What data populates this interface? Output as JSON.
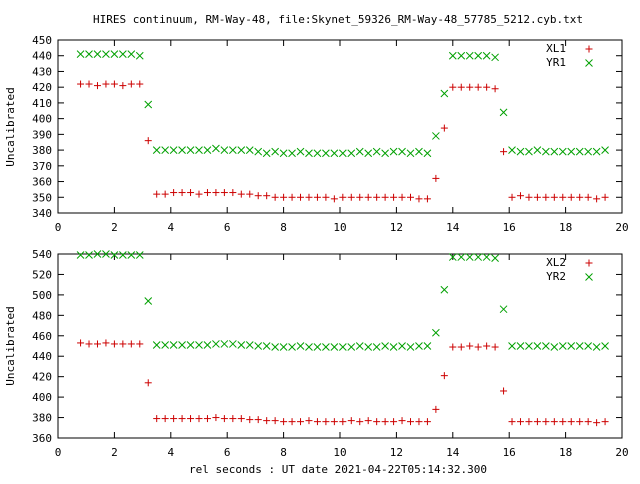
{
  "title": "HIRES continuum, RM-Way-48, file:Skynet_59326_RM-Way-48_57785_5212.cyb.txt",
  "xlabel": "rel seconds : UT date 2021-04-22T05:14:32.300",
  "colors": {
    "plus": "#cc0000",
    "cross": "#00a000",
    "axis": "#000000",
    "background": "#ffffff"
  },
  "chart_data": [
    {
      "type": "scatter",
      "ylabel": "Uncalibrated",
      "xlim": [
        0,
        20
      ],
      "ylim": [
        340,
        450
      ],
      "xticks": [
        0,
        2,
        4,
        6,
        8,
        10,
        12,
        14,
        16,
        18,
        20
      ],
      "yticks": [
        340,
        350,
        360,
        370,
        380,
        390,
        400,
        410,
        420,
        430,
        440,
        450
      ],
      "legend_position": "top-right",
      "series": [
        {
          "name": "XL1",
          "marker": "plus",
          "x": [
            0.8,
            1.1,
            1.4,
            1.7,
            2.0,
            2.3,
            2.6,
            2.9,
            3.2,
            3.5,
            3.8,
            4.1,
            4.4,
            4.7,
            5.0,
            5.3,
            5.6,
            5.9,
            6.2,
            6.5,
            6.8,
            7.1,
            7.4,
            7.7,
            8.0,
            8.3,
            8.6,
            8.9,
            9.2,
            9.5,
            9.8,
            10.1,
            10.4,
            10.7,
            11.0,
            11.3,
            11.6,
            11.9,
            12.2,
            12.5,
            12.8,
            13.1,
            13.4,
            13.7,
            14.0,
            14.3,
            14.6,
            14.9,
            15.2,
            15.5,
            15.8,
            16.1,
            16.4,
            16.7,
            17.0,
            17.3,
            17.6,
            17.9,
            18.2,
            18.5,
            18.8,
            19.1,
            19.4
          ],
          "y": [
            422,
            422,
            421,
            422,
            422,
            421,
            422,
            422,
            386,
            352,
            352,
            353,
            353,
            353,
            352,
            353,
            353,
            353,
            353,
            352,
            352,
            351,
            351,
            350,
            350,
            350,
            350,
            350,
            350,
            350,
            349,
            350,
            350,
            350,
            350,
            350,
            350,
            350,
            350,
            350,
            349,
            349,
            362,
            394,
            420,
            420,
            420,
            420,
            420,
            419,
            379,
            350,
            351,
            350,
            350,
            350,
            350,
            350,
            350,
            350,
            350,
            349,
            350
          ]
        },
        {
          "name": "YR1",
          "marker": "cross",
          "x": [
            0.8,
            1.1,
            1.4,
            1.7,
            2.0,
            2.3,
            2.6,
            2.9,
            3.2,
            3.5,
            3.8,
            4.1,
            4.4,
            4.7,
            5.0,
            5.3,
            5.6,
            5.9,
            6.2,
            6.5,
            6.8,
            7.1,
            7.4,
            7.7,
            8.0,
            8.3,
            8.6,
            8.9,
            9.2,
            9.5,
            9.8,
            10.1,
            10.4,
            10.7,
            11.0,
            11.3,
            11.6,
            11.9,
            12.2,
            12.5,
            12.8,
            13.1,
            13.4,
            13.7,
            14.0,
            14.3,
            14.6,
            14.9,
            15.2,
            15.5,
            15.8,
            16.1,
            16.4,
            16.7,
            17.0,
            17.3,
            17.6,
            17.9,
            18.2,
            18.5,
            18.8,
            19.1,
            19.4
          ],
          "y": [
            441,
            441,
            441,
            441,
            441,
            441,
            441,
            440,
            409,
            380,
            380,
            380,
            380,
            380,
            380,
            380,
            381,
            380,
            380,
            380,
            380,
            379,
            378,
            379,
            378,
            378,
            379,
            378,
            378,
            378,
            378,
            378,
            378,
            379,
            378,
            379,
            378,
            379,
            379,
            378,
            379,
            378,
            389,
            416,
            440,
            440,
            440,
            440,
            440,
            439,
            404,
            380,
            379,
            379,
            380,
            379,
            379,
            379,
            379,
            379,
            379,
            379,
            380
          ]
        }
      ]
    },
    {
      "type": "scatter",
      "ylabel": "Uncalibrated",
      "xlabel": "rel seconds : UT date 2021-04-22T05:14:32.300",
      "xlim": [
        0,
        20
      ],
      "ylim": [
        360,
        540
      ],
      "xticks": [
        0,
        2,
        4,
        6,
        8,
        10,
        12,
        14,
        16,
        18,
        20
      ],
      "yticks": [
        360,
        380,
        400,
        420,
        440,
        460,
        480,
        500,
        520,
        540
      ],
      "legend_position": "top-right",
      "series": [
        {
          "name": "XL2",
          "marker": "plus",
          "x": [
            0.8,
            1.1,
            1.4,
            1.7,
            2.0,
            2.3,
            2.6,
            2.9,
            3.2,
            3.5,
            3.8,
            4.1,
            4.4,
            4.7,
            5.0,
            5.3,
            5.6,
            5.9,
            6.2,
            6.5,
            6.8,
            7.1,
            7.4,
            7.7,
            8.0,
            8.3,
            8.6,
            8.9,
            9.2,
            9.5,
            9.8,
            10.1,
            10.4,
            10.7,
            11.0,
            11.3,
            11.6,
            11.9,
            12.2,
            12.5,
            12.8,
            13.1,
            13.4,
            13.7,
            14.0,
            14.3,
            14.6,
            14.9,
            15.2,
            15.5,
            15.8,
            16.1,
            16.4,
            16.7,
            17.0,
            17.3,
            17.6,
            17.9,
            18.2,
            18.5,
            18.8,
            19.1,
            19.4
          ],
          "y": [
            453,
            452,
            452,
            453,
            452,
            452,
            452,
            452,
            414,
            379,
            379,
            379,
            379,
            379,
            379,
            379,
            380,
            379,
            379,
            379,
            378,
            378,
            377,
            377,
            376,
            376,
            376,
            377,
            376,
            376,
            376,
            376,
            377,
            376,
            377,
            376,
            376,
            376,
            377,
            376,
            376,
            376,
            388,
            421,
            449,
            449,
            450,
            449,
            450,
            449,
            406,
            376,
            376,
            376,
            376,
            376,
            376,
            376,
            376,
            376,
            376,
            375,
            376
          ]
        },
        {
          "name": "YR2",
          "marker": "cross",
          "x": [
            0.8,
            1.1,
            1.4,
            1.7,
            2.0,
            2.3,
            2.6,
            2.9,
            3.2,
            3.5,
            3.8,
            4.1,
            4.4,
            4.7,
            5.0,
            5.3,
            5.6,
            5.9,
            6.2,
            6.5,
            6.8,
            7.1,
            7.4,
            7.7,
            8.0,
            8.3,
            8.6,
            8.9,
            9.2,
            9.5,
            9.8,
            10.1,
            10.4,
            10.7,
            11.0,
            11.3,
            11.6,
            11.9,
            12.2,
            12.5,
            12.8,
            13.1,
            13.4,
            13.7,
            14.0,
            14.3,
            14.6,
            14.9,
            15.2,
            15.5,
            15.8,
            16.1,
            16.4,
            16.7,
            17.0,
            17.3,
            17.6,
            17.9,
            18.2,
            18.5,
            18.8,
            19.1,
            19.4
          ],
          "y": [
            539,
            539,
            540,
            540,
            539,
            539,
            539,
            539,
            494,
            451,
            451,
            451,
            451,
            451,
            451,
            451,
            452,
            452,
            452,
            451,
            451,
            450,
            450,
            449,
            449,
            449,
            450,
            449,
            449,
            449,
            449,
            449,
            449,
            450,
            449,
            449,
            450,
            449,
            450,
            449,
            450,
            450,
            463,
            505,
            537,
            537,
            537,
            537,
            537,
            536,
            486,
            450,
            450,
            450,
            450,
            450,
            449,
            450,
            450,
            450,
            450,
            449,
            450
          ]
        }
      ]
    }
  ]
}
